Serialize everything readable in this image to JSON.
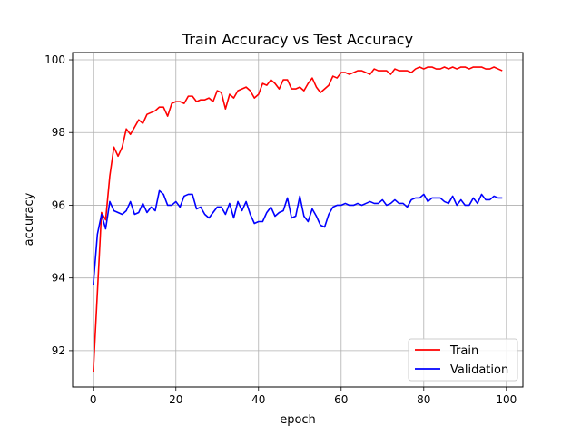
{
  "chart_data": {
    "type": "line",
    "title": "Train Accuracy vs Test Accuracy",
    "xlabel": "epoch",
    "ylabel": "accuracy",
    "xlim": [
      -5,
      104
    ],
    "ylim": [
      91.0,
      100.2
    ],
    "xticks": [
      0,
      20,
      40,
      60,
      80,
      100
    ],
    "yticks": [
      92,
      94,
      96,
      98,
      100
    ],
    "grid": true,
    "legend_position": "lower-right",
    "series": [
      {
        "name": "Train",
        "color": "#ff0000",
        "x": [
          0,
          1,
          2,
          3,
          4,
          5,
          6,
          7,
          8,
          9,
          10,
          11,
          12,
          13,
          14,
          15,
          16,
          17,
          18,
          19,
          20,
          21,
          22,
          23,
          24,
          25,
          26,
          27,
          28,
          29,
          30,
          31,
          32,
          33,
          34,
          35,
          36,
          37,
          38,
          39,
          40,
          41,
          42,
          43,
          44,
          45,
          46,
          47,
          48,
          49,
          50,
          51,
          52,
          53,
          54,
          55,
          56,
          57,
          58,
          59,
          60,
          61,
          62,
          63,
          64,
          65,
          66,
          67,
          68,
          69,
          70,
          71,
          72,
          73,
          74,
          75,
          76,
          77,
          78,
          79,
          80,
          81,
          82,
          83,
          84,
          85,
          86,
          87,
          88,
          89,
          90,
          91,
          92,
          93,
          94,
          95,
          96,
          97,
          98,
          99
        ],
        "values": [
          91.4,
          93.6,
          95.8,
          95.6,
          96.8,
          97.6,
          97.35,
          97.6,
          98.1,
          97.95,
          98.15,
          98.35,
          98.25,
          98.5,
          98.55,
          98.6,
          98.7,
          98.7,
          98.45,
          98.8,
          98.85,
          98.85,
          98.8,
          99.0,
          99.0,
          98.85,
          98.9,
          98.9,
          98.95,
          98.85,
          99.15,
          99.1,
          98.65,
          99.05,
          98.95,
          99.15,
          99.2,
          99.25,
          99.15,
          98.95,
          99.05,
          99.35,
          99.3,
          99.45,
          99.35,
          99.2,
          99.45,
          99.45,
          99.2,
          99.2,
          99.25,
          99.15,
          99.35,
          99.5,
          99.25,
          99.1,
          99.2,
          99.3,
          99.55,
          99.5,
          99.65,
          99.65,
          99.6,
          99.65,
          99.7,
          99.7,
          99.65,
          99.6,
          99.75,
          99.7,
          99.7,
          99.7,
          99.6,
          99.75,
          99.7,
          99.7,
          99.7,
          99.65,
          99.75,
          99.8,
          99.75,
          99.8,
          99.8,
          99.75,
          99.75,
          99.8,
          99.75,
          99.8,
          99.75,
          99.8,
          99.8,
          99.75,
          99.8,
          99.8,
          99.8,
          99.75,
          99.75,
          99.8,
          99.75,
          99.7
        ]
      },
      {
        "name": "Validation",
        "color": "#0000ff",
        "x": [
          0,
          1,
          2,
          3,
          4,
          5,
          6,
          7,
          8,
          9,
          10,
          11,
          12,
          13,
          14,
          15,
          16,
          17,
          18,
          19,
          20,
          21,
          22,
          23,
          24,
          25,
          26,
          27,
          28,
          29,
          30,
          31,
          32,
          33,
          34,
          35,
          36,
          37,
          38,
          39,
          40,
          41,
          42,
          43,
          44,
          45,
          46,
          47,
          48,
          49,
          50,
          51,
          52,
          53,
          54,
          55,
          56,
          57,
          58,
          59,
          60,
          61,
          62,
          63,
          64,
          65,
          66,
          67,
          68,
          69,
          70,
          71,
          72,
          73,
          74,
          75,
          76,
          77,
          78,
          79,
          80,
          81,
          82,
          83,
          84,
          85,
          86,
          87,
          88,
          89,
          90,
          91,
          92,
          93,
          94,
          95,
          96,
          97,
          98,
          99
        ],
        "values": [
          93.8,
          95.2,
          95.75,
          95.35,
          96.1,
          95.85,
          95.8,
          95.75,
          95.85,
          96.1,
          95.75,
          95.8,
          96.05,
          95.8,
          95.95,
          95.85,
          96.4,
          96.3,
          96.0,
          96.0,
          96.1,
          95.95,
          96.25,
          96.3,
          96.3,
          95.9,
          95.95,
          95.75,
          95.65,
          95.8,
          95.95,
          95.95,
          95.75,
          96.05,
          95.65,
          96.1,
          95.85,
          96.1,
          95.75,
          95.5,
          95.55,
          95.55,
          95.8,
          95.95,
          95.7,
          95.8,
          95.85,
          96.2,
          95.65,
          95.7,
          96.25,
          95.7,
          95.55,
          95.9,
          95.7,
          95.45,
          95.4,
          95.75,
          95.95,
          96.0,
          96.0,
          96.05,
          96.0,
          96.0,
          96.05,
          96.0,
          96.05,
          96.1,
          96.05,
          96.05,
          96.15,
          96.0,
          96.05,
          96.15,
          96.05,
          96.05,
          95.95,
          96.15,
          96.2,
          96.2,
          96.3,
          96.1,
          96.2,
          96.2,
          96.2,
          96.1,
          96.05,
          96.25,
          96.0,
          96.15,
          96.0,
          96.0,
          96.2,
          96.05,
          96.3,
          96.15,
          96.15,
          96.25,
          96.2,
          96.2
        ]
      }
    ]
  }
}
